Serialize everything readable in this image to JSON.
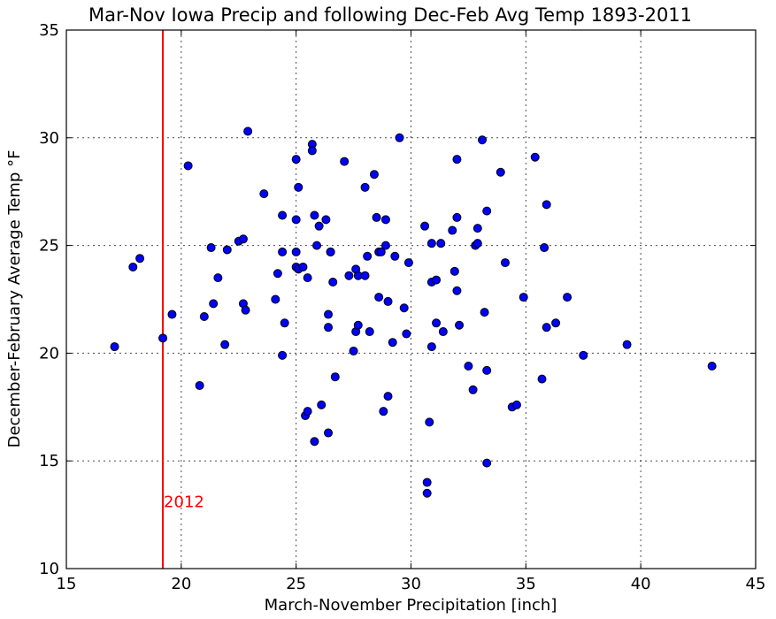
{
  "chart_data": {
    "type": "scatter",
    "title": "Mar-Nov Iowa Precip and following Dec-Feb Avg Temp 1893-2011",
    "xlabel": "March-November Precipitation [inch]",
    "ylabel": "December-February Average Temp °F",
    "xlim": [
      15,
      45
    ],
    "ylim": [
      10,
      35
    ],
    "xticks": [
      15,
      20,
      25,
      30,
      35,
      40,
      45
    ],
    "yticks": [
      10,
      15,
      20,
      25,
      30,
      35
    ],
    "grid": true,
    "marker_color": "#0000ff",
    "reference_line": {
      "x": 19.2,
      "label": "2012",
      "color": "#ff0000"
    },
    "points": [
      [
        17.1,
        20.3
      ],
      [
        17.9,
        24.0
      ],
      [
        18.2,
        24.4
      ],
      [
        19.2,
        20.7
      ],
      [
        19.6,
        21.8
      ],
      [
        20.3,
        28.7
      ],
      [
        20.8,
        18.5
      ],
      [
        21.0,
        21.7
      ],
      [
        21.3,
        24.9
      ],
      [
        21.4,
        22.3
      ],
      [
        21.6,
        23.5
      ],
      [
        21.9,
        20.4
      ],
      [
        22.0,
        24.8
      ],
      [
        22.5,
        25.2
      ],
      [
        22.7,
        25.3
      ],
      [
        22.7,
        22.3
      ],
      [
        22.8,
        22.0
      ],
      [
        22.9,
        30.3
      ],
      [
        23.6,
        27.4
      ],
      [
        24.1,
        22.5
      ],
      [
        24.2,
        23.7
      ],
      [
        24.4,
        26.4
      ],
      [
        24.4,
        24.7
      ],
      [
        24.4,
        19.9
      ],
      [
        24.5,
        21.4
      ],
      [
        25.0,
        29.0
      ],
      [
        25.0,
        24.0
      ],
      [
        25.0,
        26.2
      ],
      [
        25.0,
        24.7
      ],
      [
        25.1,
        27.7
      ],
      [
        25.1,
        23.9
      ],
      [
        25.3,
        24.0
      ],
      [
        25.4,
        17.1
      ],
      [
        25.5,
        17.3
      ],
      [
        25.5,
        23.5
      ],
      [
        25.7,
        29.7
      ],
      [
        25.7,
        29.4
      ],
      [
        25.8,
        26.4
      ],
      [
        25.8,
        15.9
      ],
      [
        25.9,
        25.0
      ],
      [
        26.0,
        25.9
      ],
      [
        26.1,
        17.6
      ],
      [
        26.3,
        26.2
      ],
      [
        26.4,
        16.3
      ],
      [
        26.4,
        21.8
      ],
      [
        26.4,
        21.2
      ],
      [
        26.5,
        24.7
      ],
      [
        26.5,
        24.7
      ],
      [
        26.6,
        23.3
      ],
      [
        26.7,
        18.9
      ],
      [
        27.1,
        28.9
      ],
      [
        27.3,
        23.6
      ],
      [
        27.5,
        20.1
      ],
      [
        27.6,
        23.9
      ],
      [
        27.6,
        21.0
      ],
      [
        27.7,
        23.6
      ],
      [
        27.7,
        21.3
      ],
      [
        28.0,
        27.7
      ],
      [
        28.0,
        23.6
      ],
      [
        28.1,
        24.5
      ],
      [
        28.2,
        21.0
      ],
      [
        28.4,
        28.3
      ],
      [
        28.5,
        26.3
      ],
      [
        28.6,
        24.7
      ],
      [
        28.6,
        22.6
      ],
      [
        28.7,
        24.7
      ],
      [
        28.8,
        17.3
      ],
      [
        28.9,
        26.2
      ],
      [
        28.9,
        25.0
      ],
      [
        29.0,
        18.0
      ],
      [
        29.0,
        22.4
      ],
      [
        29.2,
        20.5
      ],
      [
        29.3,
        24.5
      ],
      [
        29.5,
        30.0
      ],
      [
        29.7,
        22.1
      ],
      [
        29.8,
        20.9
      ],
      [
        29.9,
        24.2
      ],
      [
        30.6,
        25.9
      ],
      [
        30.7,
        14.0
      ],
      [
        30.7,
        13.5
      ],
      [
        30.8,
        16.8
      ],
      [
        30.9,
        25.1
      ],
      [
        30.9,
        23.3
      ],
      [
        30.9,
        20.3
      ],
      [
        31.1,
        23.4
      ],
      [
        31.1,
        21.4
      ],
      [
        31.3,
        25.1
      ],
      [
        31.4,
        21.0
      ],
      [
        31.8,
        25.7
      ],
      [
        31.9,
        23.8
      ],
      [
        32.0,
        29.0
      ],
      [
        32.0,
        26.3
      ],
      [
        32.0,
        22.9
      ],
      [
        32.1,
        21.3
      ],
      [
        32.5,
        19.4
      ],
      [
        32.7,
        18.3
      ],
      [
        32.8,
        25.0
      ],
      [
        32.9,
        25.8
      ],
      [
        32.9,
        25.1
      ],
      [
        33.1,
        29.9
      ],
      [
        33.2,
        21.9
      ],
      [
        33.3,
        26.6
      ],
      [
        33.3,
        19.2
      ],
      [
        33.3,
        14.9
      ],
      [
        33.9,
        28.4
      ],
      [
        34.1,
        24.2
      ],
      [
        34.4,
        17.5
      ],
      [
        34.6,
        17.6
      ],
      [
        34.9,
        22.6
      ],
      [
        35.4,
        29.1
      ],
      [
        35.7,
        18.8
      ],
      [
        35.8,
        24.9
      ],
      [
        35.9,
        26.9
      ],
      [
        35.9,
        21.2
      ],
      [
        36.3,
        21.4
      ],
      [
        36.8,
        22.6
      ],
      [
        37.5,
        19.9
      ],
      [
        39.4,
        20.4
      ],
      [
        43.1,
        19.4
      ]
    ]
  }
}
